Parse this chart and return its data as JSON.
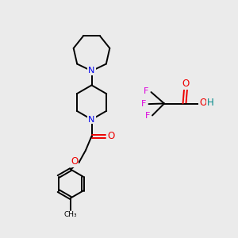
{
  "background_color": "#ebebeb",
  "atom_colors": {
    "N": "#0000ee",
    "O": "#ee0000",
    "F": "#dd00dd",
    "H": "#008888",
    "C": "#000000"
  },
  "bond_color": "#000000",
  "line_width": 1.4
}
